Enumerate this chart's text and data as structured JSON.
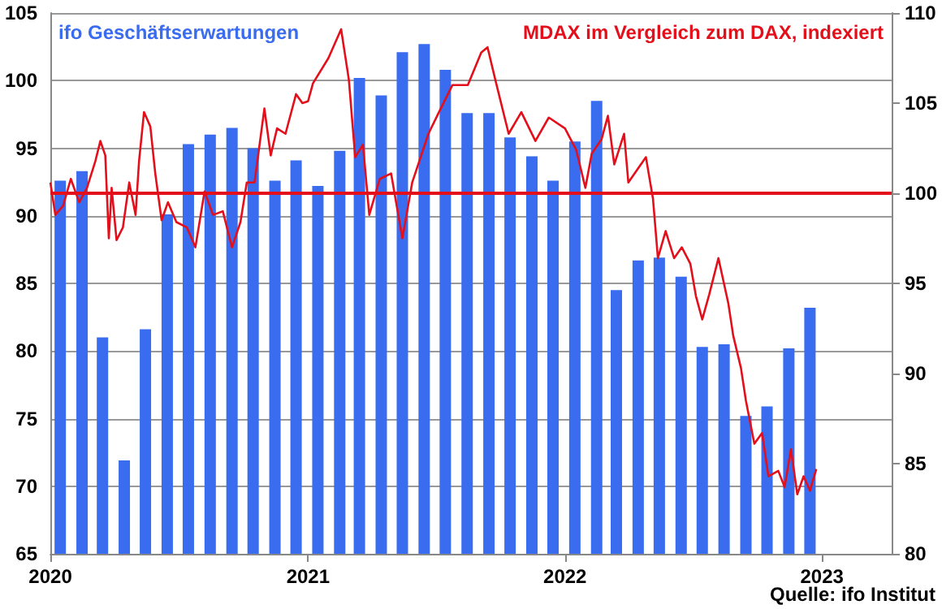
{
  "chart_data": {
    "type": "bar",
    "annotations": [
      "Quelle: ifo Institut"
    ],
    "series": [
      {
        "name": "ifo Geschäftserwartungen",
        "color": "#3a6cf0",
        "x": [
          "2020-01-15",
          "2020-02-15",
          "2020-03-15",
          "2020-04-15",
          "2020-05-15",
          "2020-06-15",
          "2020-07-15",
          "2020-08-15",
          "2020-09-15",
          "2020-10-15",
          "2020-11-15",
          "2020-12-15",
          "2021-01-15",
          "2021-02-15",
          "2021-03-15",
          "2021-04-15",
          "2021-05-15",
          "2021-06-15",
          "2021-07-15",
          "2021-08-15",
          "2021-09-15",
          "2021-10-15",
          "2021-11-15",
          "2021-12-15",
          "2022-01-15",
          "2022-02-15",
          "2022-03-15",
          "2022-04-15",
          "2022-05-15",
          "2022-06-15",
          "2022-07-15",
          "2022-08-15",
          "2022-09-15",
          "2022-10-15",
          "2022-11-15",
          "2022-12-15"
        ],
        "values": [
          92.6,
          93.3,
          81.0,
          71.9,
          81.6,
          90.1,
          95.3,
          96.0,
          96.5,
          95.0,
          92.6,
          94.1,
          92.2,
          94.8,
          100.2,
          98.9,
          102.1,
          102.7,
          100.8,
          97.6,
          97.6,
          95.8,
          94.4,
          92.6,
          95.5,
          98.5,
          84.5,
          86.7,
          86.9,
          85.5,
          80.3,
          80.5,
          75.2,
          75.9,
          80.2,
          83.2
        ]
      },
      {
        "name": "MDAX im Vergleich zum DAX, indexiert",
        "type": "line",
        "axis": "y2",
        "color": "#e3101c",
        "x": [
          "2020-01-01",
          "2020-01-08",
          "2020-01-19",
          "2020-01-30",
          "2020-02-11",
          "2020-02-22",
          "2020-03-05",
          "2020-03-12",
          "2020-03-19",
          "2020-03-24",
          "2020-03-28",
          "2020-04-04",
          "2020-04-13",
          "2020-04-22",
          "2020-05-01",
          "2020-05-06",
          "2020-05-13",
          "2020-05-22",
          "2020-05-29",
          "2020-06-07",
          "2020-06-16",
          "2020-06-28",
          "2020-07-13",
          "2020-07-25",
          "2020-08-07",
          "2020-08-19",
          "2020-09-02",
          "2020-09-15",
          "2020-09-27",
          "2020-10-06",
          "2020-10-17",
          "2020-10-31",
          "2020-11-09",
          "2020-11-18",
          "2020-11-30",
          "2020-12-15",
          "2020-12-24",
          "2021-01-01",
          "2021-01-08",
          "2021-01-30",
          "2021-02-17",
          "2021-02-28",
          "2021-03-09",
          "2021-03-20",
          "2021-03-29",
          "2021-04-13",
          "2021-04-29",
          "2021-05-15",
          "2021-05-29",
          "2021-06-21",
          "2021-07-06",
          "2021-07-25",
          "2021-08-16",
          "2021-09-04",
          "2021-09-13",
          "2021-09-24",
          "2021-10-13",
          "2021-10-31",
          "2021-11-20",
          "2021-12-09",
          "2022-01-01",
          "2022-01-17",
          "2022-01-30",
          "2022-02-08",
          "2022-02-22",
          "2022-03-03",
          "2022-03-12",
          "2022-03-26",
          "2022-04-01",
          "2022-04-17",
          "2022-04-26",
          "2022-05-06",
          "2022-05-13",
          "2022-05-24",
          "2022-06-05",
          "2022-06-16",
          "2022-06-28",
          "2022-07-06",
          "2022-07-15",
          "2022-07-25",
          "2022-08-07",
          "2022-08-21",
          "2022-08-28",
          "2022-09-08",
          "2022-09-15",
          "2022-09-27",
          "2022-10-08",
          "2022-10-17",
          "2022-10-31",
          "2022-11-09",
          "2022-11-18",
          "2022-11-27",
          "2022-12-06",
          "2022-12-15",
          "2022-12-24"
        ],
        "values": [
          100.6,
          98.8,
          99.3,
          100.8,
          99.5,
          100.3,
          101.8,
          102.9,
          102.1,
          97.5,
          100.3,
          97.4,
          98.1,
          100.6,
          98.8,
          101.8,
          104.5,
          103.7,
          101.1,
          98.5,
          99.5,
          98.4,
          98.1,
          97.0,
          100.1,
          98.8,
          99.0,
          97.0,
          98.4,
          100.6,
          100.6,
          104.7,
          102.1,
          103.6,
          103.3,
          105.5,
          105.0,
          105.1,
          106.1,
          107.5,
          109.1,
          106.3,
          102.0,
          102.7,
          98.8,
          100.8,
          101.1,
          97.5,
          100.6,
          103.3,
          104.5,
          106.0,
          106.0,
          107.8,
          108.1,
          106.3,
          103.3,
          104.5,
          102.9,
          104.2,
          103.6,
          102.4,
          100.3,
          102.2,
          103.0,
          104.3,
          101.6,
          103.3,
          100.6,
          101.5,
          102.0,
          99.7,
          96.4,
          97.9,
          96.4,
          97.0,
          96.1,
          94.3,
          93.0,
          94.4,
          96.4,
          93.9,
          92.1,
          90.3,
          88.5,
          86.1,
          86.7,
          84.3,
          84.6,
          83.7,
          85.8,
          83.3,
          84.3,
          83.5,
          84.7
        ]
      }
    ],
    "xlim": [
      "2020",
      "2023-04-10"
    ],
    "xticks": [
      "2020",
      "2021",
      "2022",
      "2023"
    ],
    "ylim": [
      65,
      105
    ],
    "yticks": [
      65,
      70,
      75,
      80,
      85,
      90,
      95,
      100,
      105
    ],
    "y2lim": [
      80,
      110
    ],
    "y2ticks": [
      80,
      85,
      90,
      95,
      100,
      105,
      110
    ],
    "ref_lines": [
      {
        "axis": "y2",
        "value": 100,
        "color": "#e3101c"
      }
    ],
    "grid": "y",
    "legend": false,
    "marker": "none"
  }
}
